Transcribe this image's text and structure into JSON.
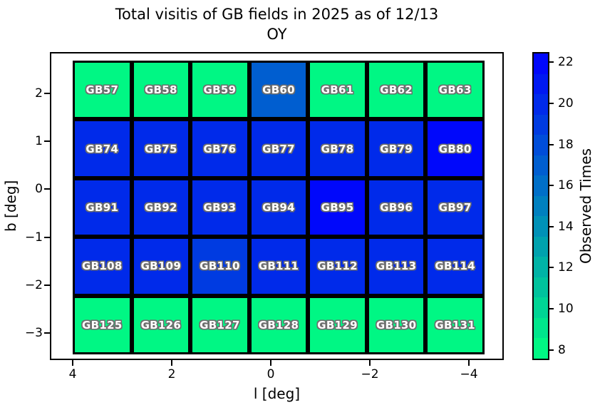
{
  "figure": {
    "title_line1": "Total visitis of GB fields in 2025 as of 12/13",
    "title_line2": "OY"
  },
  "chart_data": {
    "type": "heatmap",
    "title": "Total visitis of GB fields in 2025 as of 12/13 OY",
    "xlabel": "l [deg]",
    "ylabel": "b [deg]",
    "x_axis_inverted": true,
    "x_ticks": [
      4,
      2,
      0,
      -2,
      -4
    ],
    "x_tick_labels": [
      "4",
      "2",
      "0",
      "−2",
      "−4"
    ],
    "y_ticks": [
      2,
      1,
      0,
      -1,
      -2,
      -3
    ],
    "y_tick_labels": [
      "2",
      "1",
      "0",
      "−1",
      "−2",
      "−3"
    ],
    "colorbar": {
      "label": "Observed Times",
      "ticks": [
        8,
        10,
        12,
        14,
        16,
        18,
        20,
        22
      ],
      "tick_labels": [
        "8",
        "10",
        "12",
        "14",
        "16",
        "18",
        "20",
        "22"
      ],
      "vmin": 7.5,
      "vmax": 22.5,
      "n_steps": 15,
      "colormap": "winter_r",
      "color_low": "#00FF80",
      "color_high": "#0000FF"
    },
    "rows": [
      {
        "cells": [
          {
            "label": "GB57",
            "value": 8
          },
          {
            "label": "GB58",
            "value": 8
          },
          {
            "label": "GB59",
            "value": 8
          },
          {
            "label": "GB60",
            "value": 17
          },
          {
            "label": "GB61",
            "value": 8
          },
          {
            "label": "GB62",
            "value": 8
          },
          {
            "label": "GB63",
            "value": 8
          }
        ]
      },
      {
        "cells": [
          {
            "label": "GB74",
            "value": 20
          },
          {
            "label": "GB75",
            "value": 20
          },
          {
            "label": "GB76",
            "value": 20
          },
          {
            "label": "GB77",
            "value": 20
          },
          {
            "label": "GB78",
            "value": 20
          },
          {
            "label": "GB79",
            "value": 20
          },
          {
            "label": "GB80",
            "value": 22
          }
        ]
      },
      {
        "cells": [
          {
            "label": "GB91",
            "value": 20
          },
          {
            "label": "GB92",
            "value": 20
          },
          {
            "label": "GB93",
            "value": 20
          },
          {
            "label": "GB94",
            "value": 20
          },
          {
            "label": "GB95",
            "value": 22
          },
          {
            "label": "GB96",
            "value": 20
          },
          {
            "label": "GB97",
            "value": 20
          }
        ]
      },
      {
        "cells": [
          {
            "label": "GB108",
            "value": 20
          },
          {
            "label": "GB109",
            "value": 20
          },
          {
            "label": "GB110",
            "value": 19
          },
          {
            "label": "GB111",
            "value": 20
          },
          {
            "label": "GB112",
            "value": 20
          },
          {
            "label": "GB113",
            "value": 20
          },
          {
            "label": "GB114",
            "value": 20
          }
        ]
      },
      {
        "cells": [
          {
            "label": "GB125",
            "value": 8
          },
          {
            "label": "GB126",
            "value": 8
          },
          {
            "label": "GB127",
            "value": 8
          },
          {
            "label": "GB128",
            "value": 8
          },
          {
            "label": "GB129",
            "value": 8
          },
          {
            "label": "GB130",
            "value": 8
          },
          {
            "label": "GB131",
            "value": 8
          }
        ]
      }
    ]
  }
}
